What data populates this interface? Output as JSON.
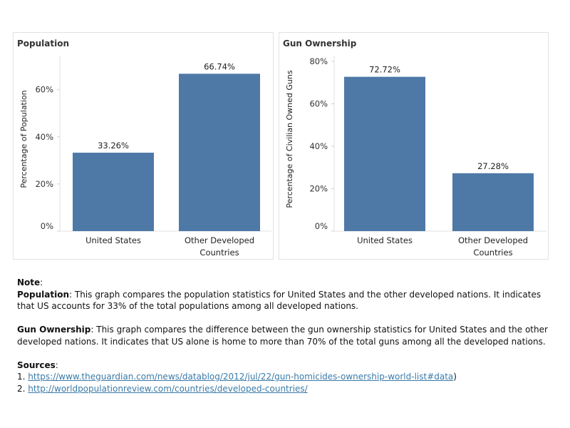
{
  "chart_data": [
    {
      "type": "bar",
      "title": "Population",
      "ylabel": "Percentage of Population",
      "xlabel": "",
      "categories": [
        "United States",
        "Other Developed Countries"
      ],
      "values": [
        33.26,
        66.74
      ],
      "value_labels": [
        "33.26%",
        "66.74%"
      ],
      "yticks": [
        "0%",
        "20%",
        "40%",
        "60%"
      ],
      "ytick_values": [
        0,
        20,
        40,
        60
      ],
      "ylim": [
        0,
        72
      ],
      "bar_color": "#4e79a7",
      "grid": false
    },
    {
      "type": "bar",
      "title": "Gun Ownership",
      "ylabel": "Percentage of Civilian Owned Guns",
      "xlabel": "",
      "categories": [
        "United States",
        "Other Developed Countries"
      ],
      "values": [
        72.72,
        27.28
      ],
      "value_labels": [
        "72.72%",
        "27.28%"
      ],
      "yticks": [
        "0%",
        "20%",
        "40%",
        "60%",
        "80%"
      ],
      "ytick_values": [
        0,
        20,
        40,
        60,
        80
      ],
      "ylim": [
        0,
        80
      ],
      "bar_color": "#4e79a7",
      "grid": false
    }
  ],
  "notes": {
    "heading": "Note",
    "population_term": "Population",
    "population_text": ": This graph compares the population statistics for United States and the other developed nations. It indicates that US accounts for 33% of the total populations among all developed nations.",
    "gun_term": "Gun Ownership",
    "gun_text": ": This graph compares the difference between the gun ownership statistics for United States and the other developed nations. It indicates that US alone is home to more than 70% of the total guns among all the developed nations.",
    "sources_heading": "Sources",
    "sources": [
      {
        "num": "1. ",
        "url": "https://www.theguardian.com/news/datablog/2012/jul/22/gun-homicides-ownership-world-list#data",
        "suffix": ")"
      },
      {
        "num": "2. ",
        "url": "http://worldpopulationreview.com/countries/developed-countries/",
        "suffix": ""
      }
    ]
  }
}
